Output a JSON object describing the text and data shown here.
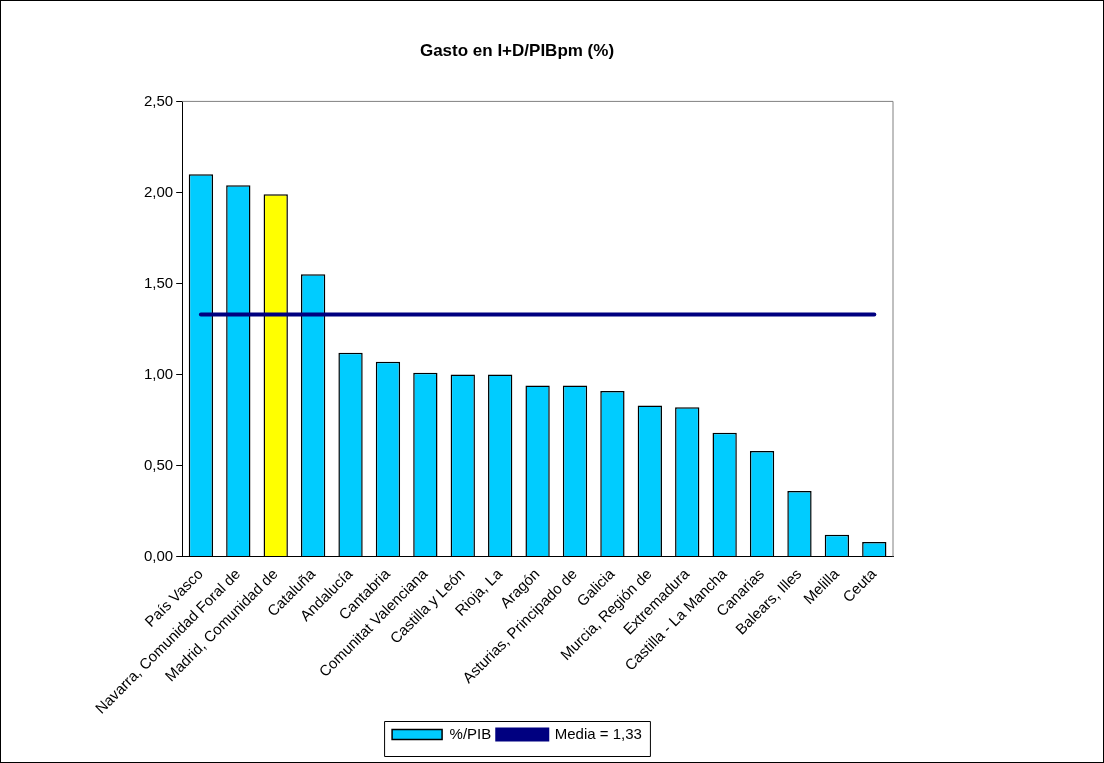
{
  "chart_data": {
    "type": "bar",
    "title": "Gasto en I+D/PIBpm (%)",
    "categories": [
      "País Vasco",
      "Navarra, Comunidad Foral de",
      "Madrid, Comunidad de",
      "Cataluña",
      "Andalucía",
      "Cantabria",
      "Comunitat Valenciana",
      "Castilla y León",
      "Rioja, La",
      "Aragón",
      "Asturias, Principado de",
      "Galicia",
      "Murcia, Región de",
      "Extremadura",
      "Castilla - La Mancha",
      "Canarias",
      "Balears, Illes",
      "Melilla",
      "Ceuta"
    ],
    "series": [
      {
        "name": "%/PIB",
        "color": "#00ccff",
        "colors": [
          "#00ccff",
          "#00ccff",
          "#ffff00",
          "#00ccff",
          "#00ccff",
          "#00ccff",
          "#00ccff",
          "#00ccff",
          "#00ccff",
          "#00ccff",
          "#00ccff",
          "#00ccff",
          "#00ccff",
          "#00ccff",
          "#00ccff",
          "#00ccff",
          "#00ccff",
          "#00ccff",
          "#00ccff"
        ],
        "values": [
          2.1,
          2.04,
          1.99,
          1.55,
          1.12,
          1.07,
          1.01,
          1.0,
          1.0,
          0.94,
          0.94,
          0.91,
          0.83,
          0.82,
          0.68,
          0.58,
          0.36,
          0.12,
          0.08
        ]
      },
      {
        "name": "Media = 1,33",
        "type": "line",
        "color": "#000080",
        "values": [
          1.33,
          1.33,
          1.33,
          1.33,
          1.33,
          1.33,
          1.33,
          1.33,
          1.33,
          1.33,
          1.33,
          1.33,
          1.33,
          1.33,
          1.33,
          1.33,
          1.33,
          1.33,
          1.33
        ]
      }
    ],
    "ylim": [
      0,
      2.5
    ],
    "yticks": [
      {
        "value": 0,
        "label": "0,00"
      },
      {
        "value": 0.5,
        "label": "0,50"
      },
      {
        "value": 1,
        "label": "1,00"
      },
      {
        "value": 1.5,
        "label": "1,50"
      },
      {
        "value": 2,
        "label": "2,00"
      },
      {
        "value": 2.5,
        "label": "2,50"
      }
    ],
    "grid": false,
    "legend": "bottom",
    "marker": "none",
    "line_style": "solid"
  }
}
